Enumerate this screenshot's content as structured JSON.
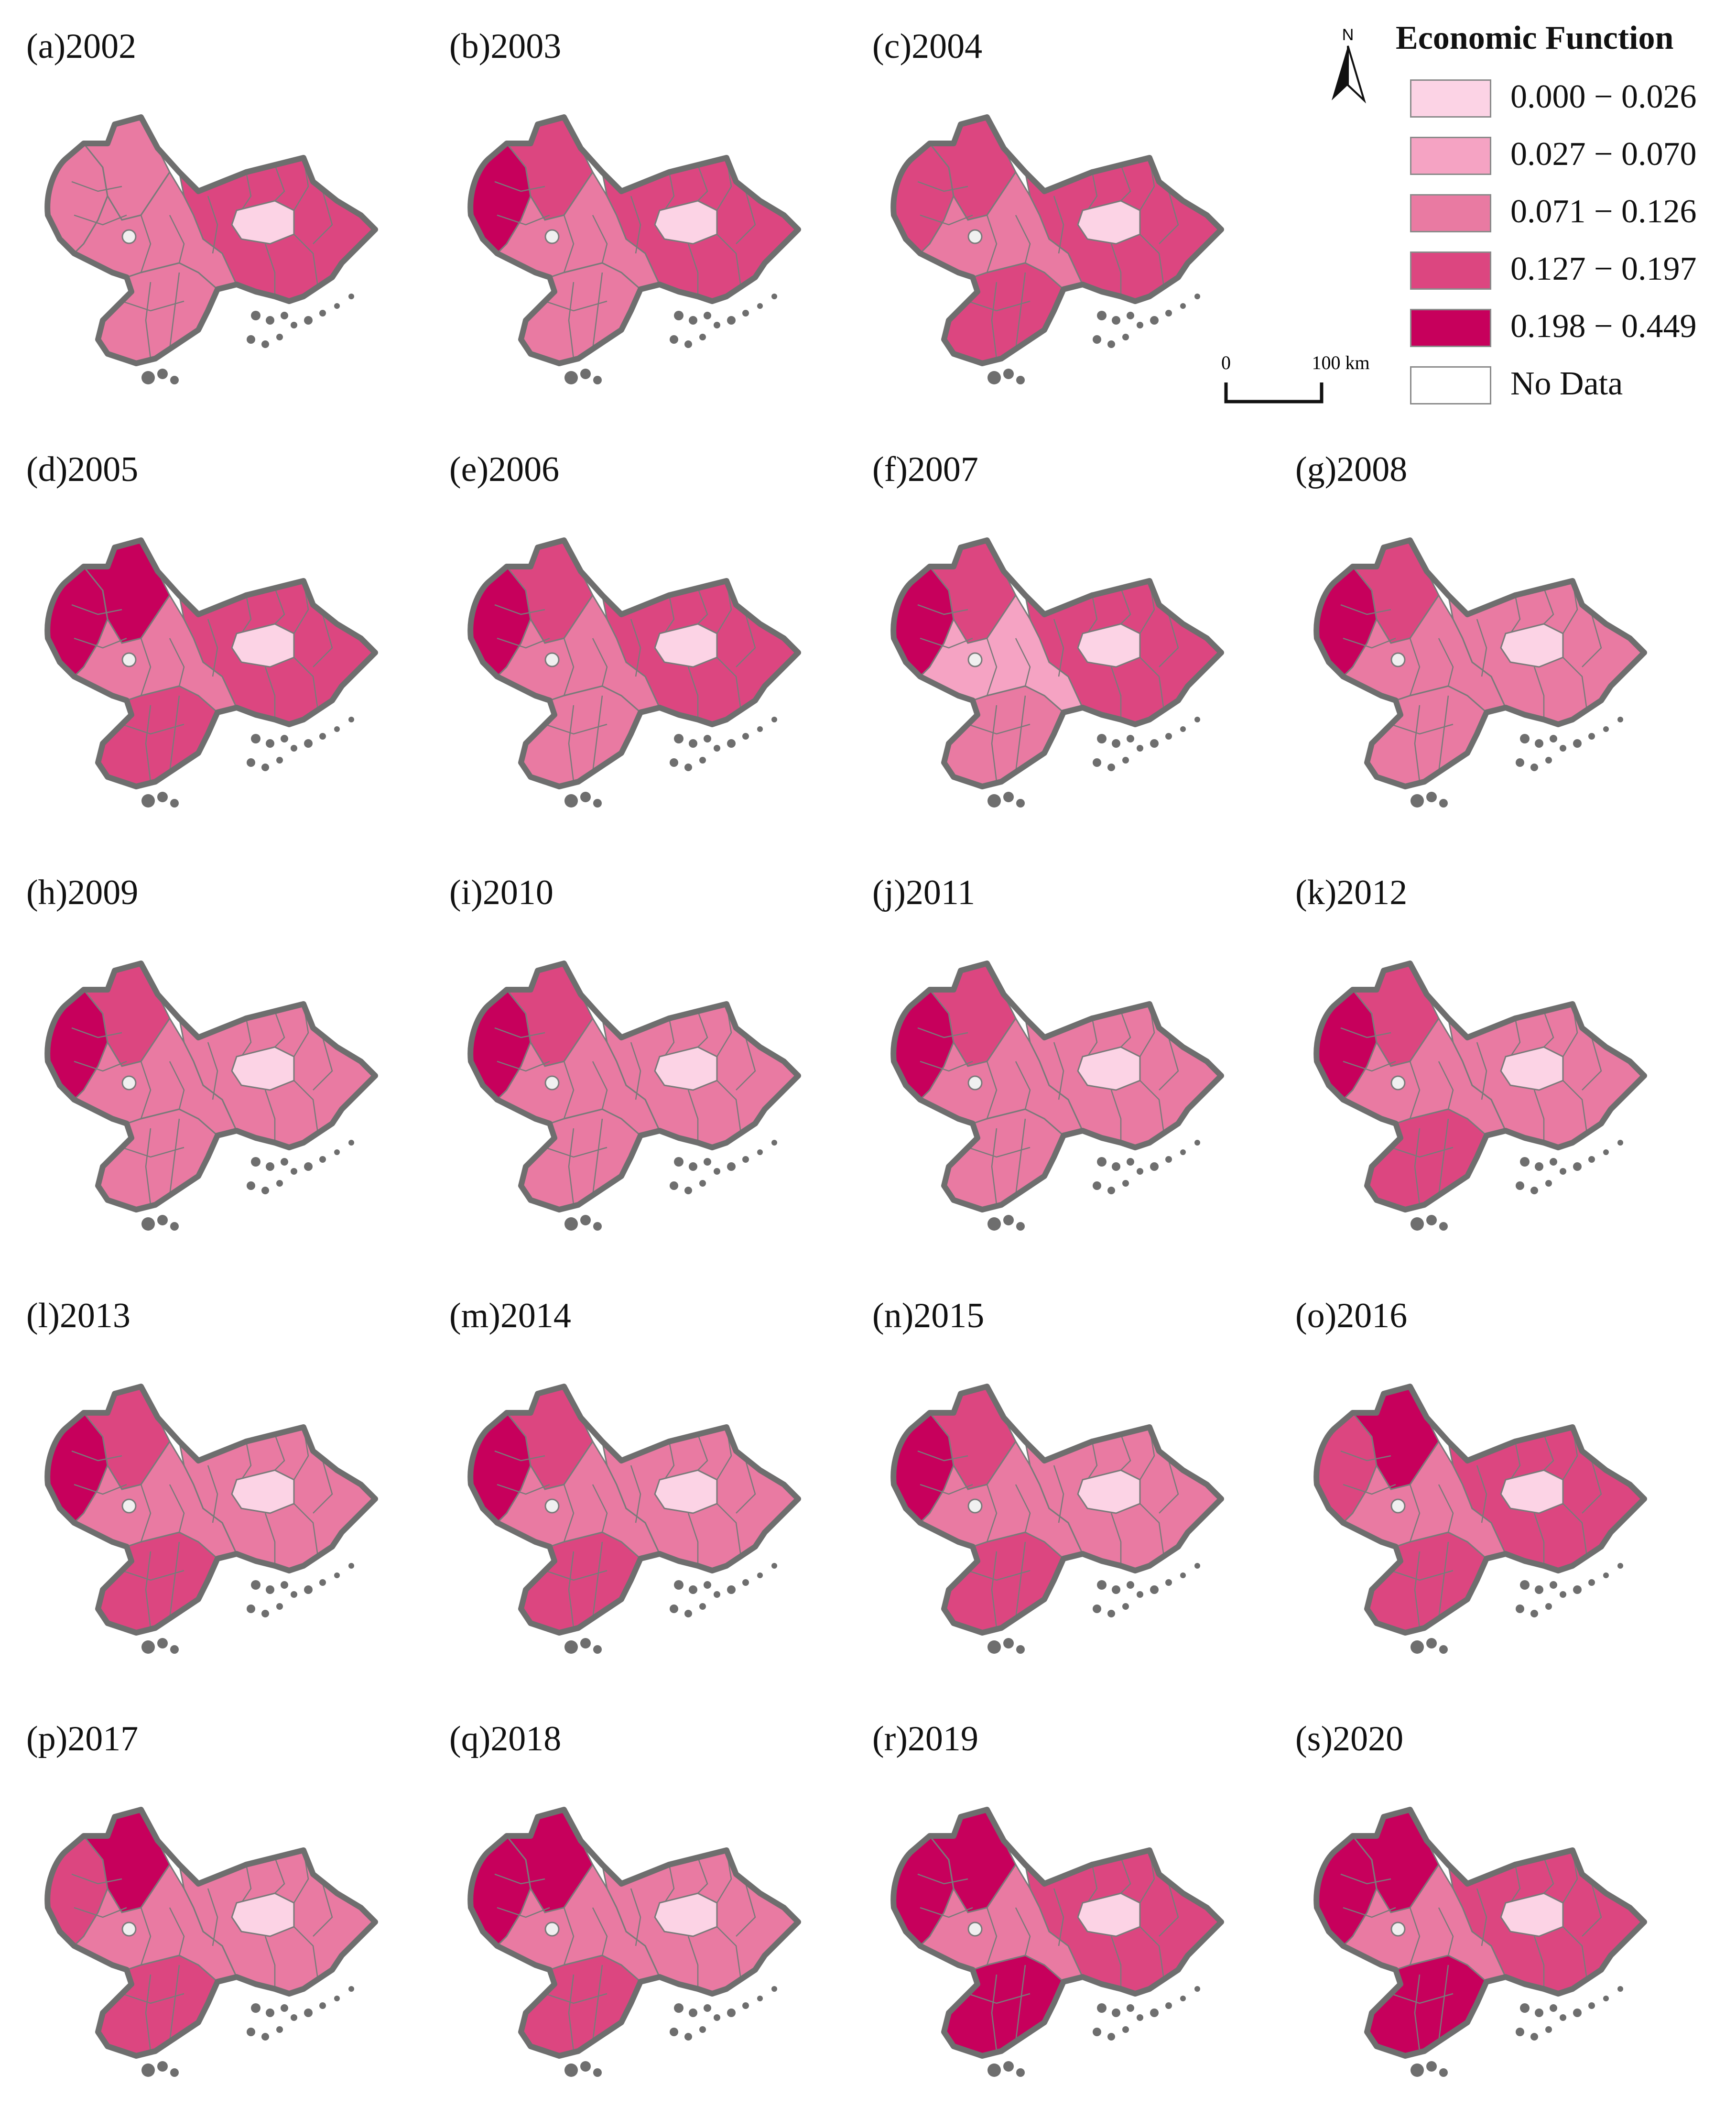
{
  "legend": {
    "title": "Economic Function",
    "items": [
      {
        "label": "0.000 − 0.026",
        "color": "#fcd3e5"
      },
      {
        "label": "0.027 − 0.070",
        "color": "#f5a3c3"
      },
      {
        "label": "0.071 − 0.126",
        "color": "#e97aa2"
      },
      {
        "label": "0.127 − 0.197",
        "color": "#dc4680"
      },
      {
        "label": "0.198 − 0.449",
        "color": "#c7005c"
      },
      {
        "label": "No Data",
        "color": "#ffffff"
      }
    ]
  },
  "north_arrow": {
    "label": "N"
  },
  "scale_bar": {
    "zero_label": "0",
    "end_label": "100 km"
  },
  "colors": {
    "outline": "#6e6e6e",
    "inner_border": "#7a7a7a"
  },
  "panels": [
    {
      "label": "(a)2002",
      "west": "#e97aa2",
      "northwest": "#e97aa2",
      "center": "#e97aa2",
      "north_east": "#dc4680",
      "south": "#e97aa2"
    },
    {
      "label": "(b)2003",
      "west": "#c7005c",
      "northwest": "#dc4680",
      "center": "#e97aa2",
      "north_east": "#dc4680",
      "south": "#e97aa2"
    },
    {
      "label": "(c)2004",
      "west": "#dc4680",
      "northwest": "#dc4680",
      "center": "#e97aa2",
      "north_east": "#dc4680",
      "south": "#dc4680"
    },
    {
      "label": "(d)2005",
      "west": "#c7005c",
      "northwest": "#c7005c",
      "center": "#e97aa2",
      "north_east": "#dc4680",
      "south": "#dc4680"
    },
    {
      "label": "(e)2006",
      "west": "#c7005c",
      "northwest": "#dc4680",
      "center": "#e97aa2",
      "north_east": "#dc4680",
      "south": "#e97aa2"
    },
    {
      "label": "(f)2007",
      "west": "#c7005c",
      "northwest": "#dc4680",
      "center": "#f5a3c3",
      "north_east": "#dc4680",
      "south": "#e97aa2"
    },
    {
      "label": "(g)2008",
      "west": "#c7005c",
      "northwest": "#dc4680",
      "center": "#e97aa2",
      "north_east": "#e97aa2",
      "south": "#e97aa2"
    },
    {
      "label": "(h)2009",
      "west": "#c7005c",
      "northwest": "#dc4680",
      "center": "#e97aa2",
      "north_east": "#e97aa2",
      "south": "#e97aa2"
    },
    {
      "label": "(i)2010",
      "west": "#c7005c",
      "northwest": "#dc4680",
      "center": "#e97aa2",
      "north_east": "#e97aa2",
      "south": "#e97aa2"
    },
    {
      "label": "(j)2011",
      "west": "#c7005c",
      "northwest": "#dc4680",
      "center": "#e97aa2",
      "north_east": "#e97aa2",
      "south": "#e97aa2"
    },
    {
      "label": "(k)2012",
      "west": "#c7005c",
      "northwest": "#dc4680",
      "center": "#e97aa2",
      "north_east": "#e97aa2",
      "south": "#dc4680"
    },
    {
      "label": "(l)2013",
      "west": "#c7005c",
      "northwest": "#dc4680",
      "center": "#e97aa2",
      "north_east": "#e97aa2",
      "south": "#dc4680"
    },
    {
      "label": "(m)2014",
      "west": "#c7005c",
      "northwest": "#dc4680",
      "center": "#e97aa2",
      "north_east": "#e97aa2",
      "south": "#dc4680"
    },
    {
      "label": "(n)2015",
      "west": "#c7005c",
      "northwest": "#dc4680",
      "center": "#e97aa2",
      "north_east": "#e97aa2",
      "south": "#dc4680"
    },
    {
      "label": "(o)2016",
      "west": "#dc4680",
      "northwest": "#c7005c",
      "center": "#e97aa2",
      "north_east": "#dc4680",
      "south": "#dc4680"
    },
    {
      "label": "(p)2017",
      "west": "#dc4680",
      "northwest": "#c7005c",
      "center": "#e97aa2",
      "north_east": "#e97aa2",
      "south": "#dc4680"
    },
    {
      "label": "(q)2018",
      "west": "#c7005c",
      "northwest": "#c7005c",
      "center": "#e97aa2",
      "north_east": "#e97aa2",
      "south": "#dc4680"
    },
    {
      "label": "(r)2019",
      "west": "#c7005c",
      "northwest": "#c7005c",
      "center": "#e97aa2",
      "north_east": "#dc4680",
      "south": "#c7005c"
    },
    {
      "label": "(s)2020",
      "west": "#c7005c",
      "northwest": "#c7005c",
      "center": "#e97aa2",
      "north_east": "#dc4680",
      "south": "#c7005c"
    }
  ]
}
